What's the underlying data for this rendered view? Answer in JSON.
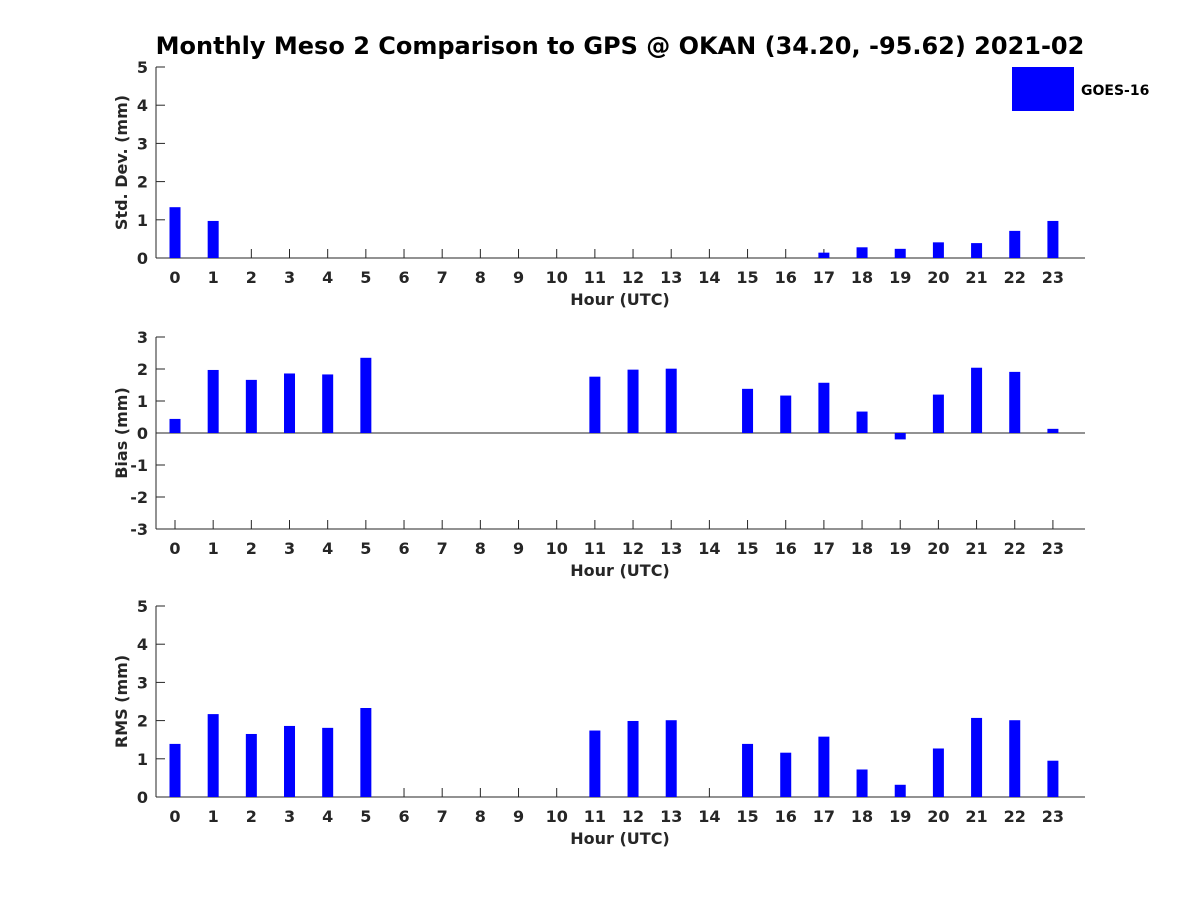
{
  "title": "Monthly Meso 2 Comparison to GPS @ OKAN (34.20, -95.62) 2021-02",
  "legend": {
    "label": "GOES-16",
    "color": "#0000ff"
  },
  "chart_data": [
    {
      "type": "bar",
      "title": "Monthly Meso 2 Comparison to GPS @ OKAN (34.20, -95.62) 2021-02",
      "xlabel": "Hour (UTC)",
      "ylabel": "Std. Dev. (mm)",
      "ylim": [
        0,
        5
      ],
      "yticks": [
        "0",
        "1",
        "2",
        "3",
        "4",
        "5"
      ],
      "categories": [
        "0",
        "1",
        "2",
        "3",
        "4",
        "5",
        "6",
        "7",
        "8",
        "9",
        "10",
        "11",
        "12",
        "13",
        "14",
        "15",
        "16",
        "17",
        "18",
        "19",
        "20",
        "21",
        "22",
        "23"
      ],
      "series": [
        {
          "name": "GOES-16",
          "color": "#0000ff",
          "values": [
            1.33,
            0.97,
            0,
            0,
            0,
            0,
            0,
            0,
            0,
            0,
            0,
            0,
            0,
            0,
            0,
            0,
            0,
            0.14,
            0.28,
            0.24,
            0.41,
            0.39,
            0.71,
            0.97
          ]
        }
      ]
    },
    {
      "type": "bar",
      "xlabel": "Hour (UTC)",
      "ylabel": "Bias (mm)",
      "ylim": [
        -3,
        3
      ],
      "yticks": [
        "-3",
        "-2",
        "-1",
        "0",
        "1",
        "2",
        "3"
      ],
      "categories": [
        "0",
        "1",
        "2",
        "3",
        "4",
        "5",
        "6",
        "7",
        "8",
        "9",
        "10",
        "11",
        "12",
        "13",
        "14",
        "15",
        "16",
        "17",
        "18",
        "19",
        "20",
        "21",
        "22",
        "23"
      ],
      "series": [
        {
          "name": "GOES-16",
          "color": "#0000ff",
          "values": [
            0.44,
            1.97,
            1.66,
            1.86,
            1.83,
            2.35,
            0,
            0,
            0,
            0,
            0,
            1.76,
            1.98,
            2.01,
            0,
            1.38,
            1.17,
            1.57,
            0.67,
            -0.2,
            1.2,
            2.04,
            1.91,
            0.13
          ]
        }
      ]
    },
    {
      "type": "bar",
      "xlabel": "Hour (UTC)",
      "ylabel": "RMS (mm)",
      "ylim": [
        0,
        5
      ],
      "yticks": [
        "0",
        "1",
        "2",
        "3",
        "4",
        "5"
      ],
      "categories": [
        "0",
        "1",
        "2",
        "3",
        "4",
        "5",
        "6",
        "7",
        "8",
        "9",
        "10",
        "11",
        "12",
        "13",
        "14",
        "15",
        "16",
        "17",
        "18",
        "19",
        "20",
        "21",
        "22",
        "23"
      ],
      "series": [
        {
          "name": "GOES-16",
          "color": "#0000ff",
          "values": [
            1.39,
            2.17,
            1.65,
            1.86,
            1.81,
            2.33,
            0,
            0,
            0,
            0,
            0,
            1.74,
            1.99,
            2.01,
            0,
            1.39,
            1.16,
            1.58,
            0.72,
            0.32,
            1.27,
            2.07,
            2.01,
            0.95
          ]
        }
      ]
    }
  ]
}
